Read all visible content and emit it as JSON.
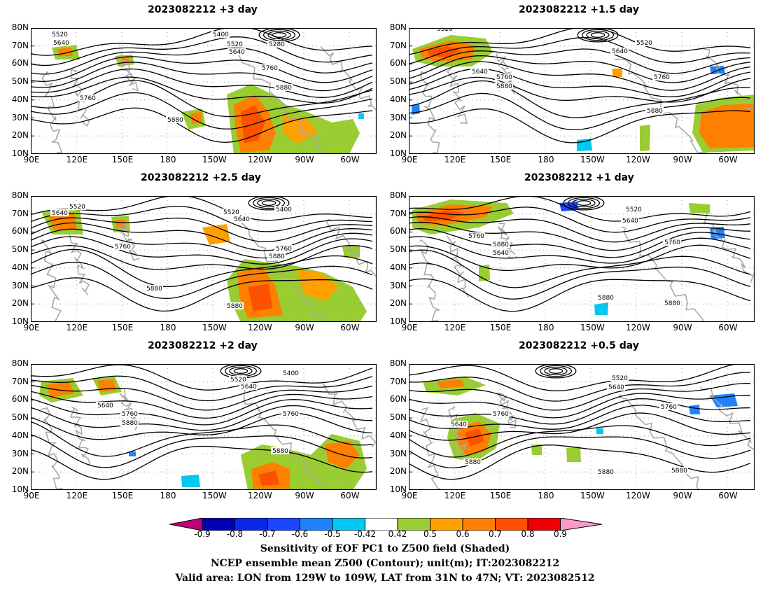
{
  "panels": [
    {
      "title": "2023082212 +3 day",
      "contour_labels": [
        "5520",
        "5640",
        "5400",
        "5520",
        "5280",
        "5640",
        "5760",
        "5880",
        "5760",
        "5880"
      ]
    },
    {
      "title": "2023082212 +1.5 day",
      "contour_labels": [
        "5520",
        "5520",
        "5640",
        "5640",
        "5760",
        "5880",
        "5760",
        "5880"
      ]
    },
    {
      "title": "2023082212 +2.5 day",
      "contour_labels": [
        "5520",
        "5640",
        "5520",
        "5400",
        "5640",
        "5760",
        "5760",
        "5880",
        "5880",
        "5880"
      ]
    },
    {
      "title": "2023082212 +1 day",
      "contour_labels": [
        "5520",
        "5640",
        "5760",
        "5880",
        "5640",
        "5760",
        "5880",
        "5880"
      ]
    },
    {
      "title": "2023082212 +2 day",
      "contour_labels": [
        "5520",
        "5400",
        "5640",
        "5640",
        "5760",
        "5880",
        "5760",
        "5880"
      ]
    },
    {
      "title": "2023082212 +0.5 day",
      "contour_labels": [
        "5520",
        "5640",
        "5640",
        "5760",
        "5760",
        "5880",
        "5880",
        "5880"
      ]
    }
  ],
  "axes": {
    "lat_ticks": [
      "80N",
      "70N",
      "60N",
      "50N",
      "40N",
      "30N",
      "20N",
      "10N"
    ],
    "lon_ticks": [
      "90E",
      "120E",
      "150E",
      "180",
      "150W",
      "120W",
      "90W",
      "60W"
    ]
  },
  "colorbar": {
    "labels": [
      "-0.9",
      "-0.8",
      "-0.7",
      "-0.6",
      "-0.5",
      "-0.42",
      "0.42",
      "0.5",
      "0.6",
      "0.7",
      "0.8",
      "0.9"
    ],
    "colors": [
      "#c0007c",
      "#0000b4",
      "#0a28e6",
      "#1e46ff",
      "#1e82ff",
      "#00c8f0",
      "#ffffff",
      "#9acd32",
      "#ffa000",
      "#ff8000",
      "#ff5000",
      "#f00000",
      "#ff99cc"
    ]
  },
  "caption": {
    "line1": "Sensitivity of EOF PC1 to Z500 field (Shaded)",
    "line2": "NCEP ensemble mean Z500 (Contour); unit(m); IT:2023082212",
    "line3": "Valid area: LON from 129W to 109W, LAT from 31N to 47N; VT: 2023082512"
  }
}
